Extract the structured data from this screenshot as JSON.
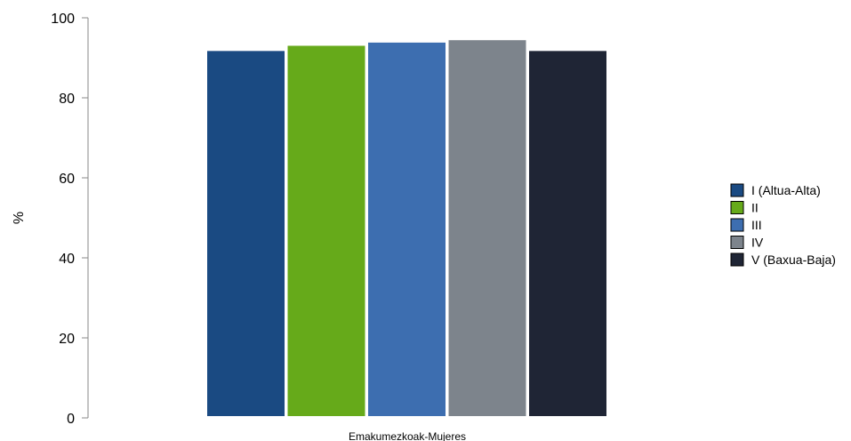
{
  "chart_data": {
    "type": "bar",
    "title": "",
    "xlabel": "",
    "ylabel": "%",
    "ylim": [
      0,
      100
    ],
    "yticks": [
      0,
      20,
      40,
      60,
      80,
      100
    ],
    "grid": false,
    "legend_position": "right",
    "categories": [
      "Emakumezkoak-Mujeres"
    ],
    "series": [
      {
        "name": "I (Altua-Alta)",
        "values": [
          91.7
        ],
        "color": "#1a4a82"
      },
      {
        "name": "II",
        "values": [
          93.0
        ],
        "color": "#66aa1a"
      },
      {
        "name": "III",
        "values": [
          93.8
        ],
        "color": "#3d6eb0"
      },
      {
        "name": "IV",
        "values": [
          94.4
        ],
        "color": "#7d848c"
      },
      {
        "name": "V (Baxua-Baja)",
        "values": [
          91.7
        ],
        "color": "#1f2535"
      }
    ]
  }
}
